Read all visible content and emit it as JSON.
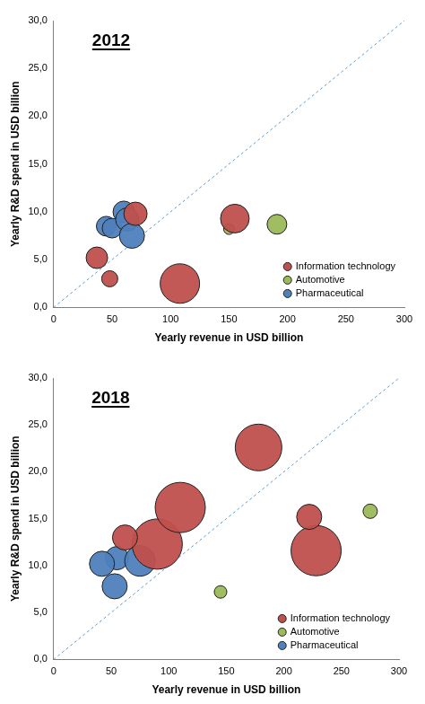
{
  "chart_data": [
    {
      "type": "bubble",
      "title": "2012",
      "x_label": "Yearly revenue in USD billion",
      "y_label": "Yearly R&D spend in USD billion",
      "xlim": [
        0,
        300
      ],
      "xticks": [
        0,
        50,
        100,
        150,
        200,
        250,
        300
      ],
      "ylim": [
        0,
        30
      ],
      "yticks": [
        {
          "value": 0,
          "label": "0,0"
        },
        {
          "value": 5,
          "label": "5,0"
        },
        {
          "value": 10,
          "label": "10,0"
        },
        {
          "value": 15,
          "label": "15,0"
        },
        {
          "value": 20,
          "label": "20,0"
        },
        {
          "value": 25,
          "label": "25,0"
        },
        {
          "value": 30,
          "label": "30,0"
        }
      ],
      "grid": false,
      "legend": "bottom-right",
      "marker": "circle",
      "series": [
        {
          "name": "Information technology",
          "color": "#c0504d",
          "x": [
            37,
            48,
            70,
            108,
            155
          ],
          "values": [
            5.2,
            3.0,
            9.8,
            2.5,
            9.3
          ],
          "sizes": [
            12,
            9,
            13,
            22,
            16
          ]
        },
        {
          "name": "Automotive",
          "color": "#9bbb59",
          "x": [
            150,
            191
          ],
          "values": [
            8.2,
            8.7
          ],
          "sizes": [
            6,
            11
          ]
        },
        {
          "name": "Pharmaceutical",
          "color": "#4f81bd",
          "x": [
            45,
            50,
            60,
            63,
            67
          ],
          "values": [
            8.5,
            8.3,
            10.0,
            9.2,
            7.5
          ],
          "sizes": [
            11,
            11,
            12,
            13,
            14
          ]
        }
      ]
    },
    {
      "type": "bubble",
      "title": "2018",
      "x_label": "Yearly revenue in USD billion",
      "y_label": "Yearly R&D spend in USD billion",
      "xlim": [
        0,
        300
      ],
      "xticks": [
        0,
        50,
        100,
        150,
        200,
        250,
        300
      ],
      "ylim": [
        0,
        30
      ],
      "yticks": [
        {
          "value": 0,
          "label": "0,0"
        },
        {
          "value": 5,
          "label": "5,0"
        },
        {
          "value": 10,
          "label": "10,0"
        },
        {
          "value": 15,
          "label": "15,0"
        },
        {
          "value": 20,
          "label": "20,0"
        },
        {
          "value": 25,
          "label": "25,0"
        },
        {
          "value": 30,
          "label": "30,0"
        }
      ],
      "grid": false,
      "legend": "bottom-right",
      "marker": "circle",
      "series": [
        {
          "name": "Information technology",
          "color": "#c0504d",
          "x": [
            90,
            110,
            178,
            228,
            62,
            222
          ],
          "values": [
            12.3,
            16.2,
            22.6,
            11.6,
            13.0,
            15.2
          ],
          "sizes": [
            28,
            28,
            26,
            28,
            14,
            14
          ]
        },
        {
          "name": "Automotive",
          "color": "#9bbb59",
          "x": [
            145,
            275
          ],
          "values": [
            7.2,
            15.8
          ],
          "sizes": [
            7,
            8
          ]
        },
        {
          "name": "Pharmaceutical",
          "color": "#4f81bd",
          "x": [
            55,
            42,
            53,
            75
          ],
          "values": [
            10.8,
            10.2,
            7.8,
            10.5
          ],
          "sizes": [
            13,
            14,
            14,
            17
          ]
        }
      ]
    }
  ]
}
